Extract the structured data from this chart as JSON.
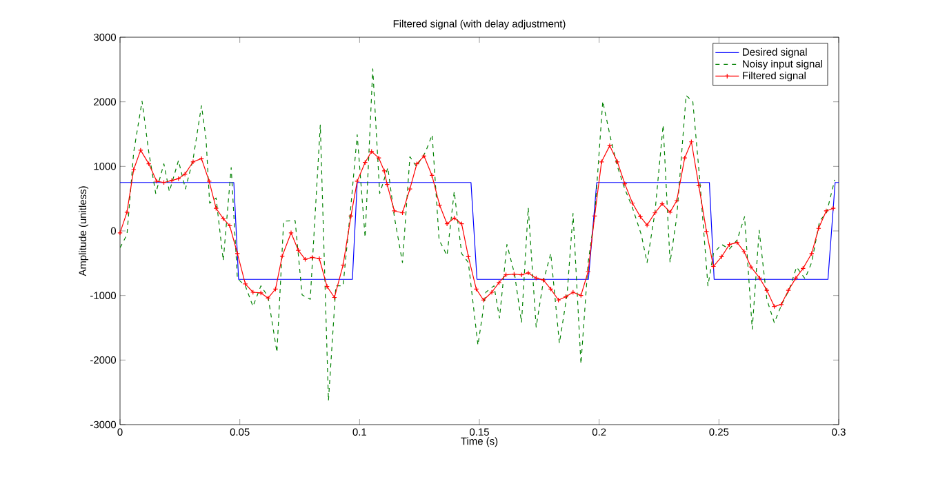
{
  "chart_data": {
    "type": "line",
    "title": "Filtered signal (with delay adjustment)",
    "xlabel": "Time (s)",
    "ylabel": "Amplitude (unitless)",
    "xlim": [
      0,
      0.3
    ],
    "xticks": [
      0,
      0.05,
      0.1,
      0.15,
      0.2,
      0.25,
      0.3
    ],
    "ylim": [
      -3000,
      3000
    ],
    "yticks": [
      -3000,
      -2000,
      -1000,
      0,
      1000,
      2000,
      3000
    ],
    "grid": false,
    "legend": "top right",
    "series": [
      {
        "name": "Desired signal",
        "color": "#0000ff",
        "line_style": "solid",
        "marker": "none",
        "x": [
          0,
          0.0475,
          0.0495,
          0.097,
          0.099,
          0.1465,
          0.149,
          0.1955,
          0.199,
          0.246,
          0.248,
          0.2955,
          0.2985,
          0.3
        ],
        "values": [
          750,
          750,
          -750,
          -750,
          750,
          750,
          -750,
          -750,
          750,
          750,
          -750,
          -750,
          750,
          750
        ]
      },
      {
        "name": "Noisy input signal",
        "color": "#008000",
        "line_style": "dashed",
        "marker": "none",
        "x": [
          0,
          0.0029,
          0.0057,
          0.0092,
          0.012,
          0.0149,
          0.0183,
          0.0206,
          0.0244,
          0.0273,
          0.0305,
          0.034,
          0.0359,
          0.0374,
          0.0401,
          0.0431,
          0.0464,
          0.049,
          0.0523,
          0.0555,
          0.0588,
          0.0618,
          0.0655,
          0.0683,
          0.0731,
          0.076,
          0.0794,
          0.0836,
          0.087,
          0.0901,
          0.0931,
          0.0964,
          0.099,
          0.1023,
          0.1055,
          0.1084,
          0.1118,
          0.1145,
          0.1179,
          0.121,
          0.1237,
          0.1275,
          0.1303,
          0.1332,
          0.1365,
          0.1395,
          0.1426,
          0.1454,
          0.1494,
          0.1527,
          0.1561,
          0.1584,
          0.1615,
          0.1647,
          0.1676,
          0.1704,
          0.1737,
          0.1767,
          0.1798,
          0.1834,
          0.1866,
          0.1891,
          0.1924,
          0.1954,
          0.1981,
          0.2015,
          0.2048,
          0.2076,
          0.2107,
          0.2139,
          0.2176,
          0.22,
          0.2233,
          0.2267,
          0.2296,
          0.2324,
          0.2363,
          0.2391,
          0.242,
          0.2454,
          0.2477,
          0.2511,
          0.2544,
          0.2576,
          0.2607,
          0.2639,
          0.2668,
          0.27,
          0.2731,
          0.2763,
          0.2792,
          0.2824,
          0.2859,
          0.2887,
          0.292,
          0.295,
          0.2983
        ],
        "values": [
          -260,
          -60,
          1220,
          2010,
          1220,
          580,
          1040,
          610,
          1090,
          650,
          1110,
          1940,
          1430,
          430,
          510,
          -460,
          980,
          -740,
          -850,
          -1170,
          -850,
          -1020,
          -1880,
          150,
          160,
          -990,
          -1060,
          1640,
          -2630,
          -850,
          -850,
          400,
          1490,
          -100,
          2510,
          580,
          980,
          220,
          -490,
          1150,
          1000,
          1220,
          1490,
          -140,
          -380,
          610,
          -350,
          -490,
          -1770,
          -950,
          -850,
          -1350,
          -210,
          -670,
          -1420,
          360,
          -1490,
          -780,
          -350,
          -1740,
          -990,
          270,
          -2060,
          -490,
          220,
          2010,
          1430,
          1000,
          650,
          360,
          -60,
          -490,
          290,
          1640,
          -490,
          220,
          2100,
          2000,
          790,
          -850,
          -350,
          -210,
          -280,
          -140,
          220,
          -1520,
          10,
          -1060,
          -1420,
          -1130,
          -920,
          -560,
          -740,
          -490,
          150,
          290,
          790
        ]
      },
      {
        "name": "Filtered signal",
        "color": "#ff0000",
        "line_style": "solid",
        "marker": "cross",
        "x": [
          0,
          0.0029,
          0.0057,
          0.0086,
          0.012,
          0.0153,
          0.0183,
          0.0216,
          0.0244,
          0.0271,
          0.0305,
          0.034,
          0.0372,
          0.0401,
          0.0431,
          0.0458,
          0.049,
          0.0523,
          0.0555,
          0.0588,
          0.0618,
          0.0649,
          0.0677,
          0.0714,
          0.0744,
          0.0773,
          0.0802,
          0.0832,
          0.0864,
          0.0895,
          0.0931,
          0.0964,
          0.099,
          0.1023,
          0.105,
          0.108,
          0.1103,
          0.1115,
          0.1145,
          0.1179,
          0.121,
          0.1239,
          0.1269,
          0.1302,
          0.1334,
          0.1365,
          0.1395,
          0.1426,
          0.1454,
          0.1487,
          0.1517,
          0.1552,
          0.1582,
          0.1611,
          0.1645,
          0.1676,
          0.1704,
          0.1737,
          0.1767,
          0.1798,
          0.183,
          0.1861,
          0.1891,
          0.1924,
          0.1954,
          0.1981,
          0.201,
          0.2044,
          0.2076,
          0.2107,
          0.2139,
          0.2172,
          0.22,
          0.2233,
          0.2263,
          0.2296,
          0.2324,
          0.2357,
          0.2385,
          0.2416,
          0.2448,
          0.2477,
          0.2511,
          0.2544,
          0.2576,
          0.2605,
          0.2634,
          0.267,
          0.27,
          0.2731,
          0.276,
          0.279,
          0.2821,
          0.2851,
          0.2887,
          0.2916,
          0.2948,
          0.2977
        ],
        "values": [
          -30,
          290,
          950,
          1250,
          1040,
          770,
          750,
          780,
          810,
          880,
          1070,
          1120,
          770,
          350,
          190,
          80,
          -350,
          -820,
          -950,
          -960,
          -1040,
          -900,
          -390,
          -30,
          -300,
          -440,
          -410,
          -430,
          -860,
          -1030,
          -530,
          230,
          770,
          1060,
          1230,
          1130,
          930,
          720,
          310,
          280,
          650,
          1040,
          1160,
          860,
          400,
          110,
          200,
          110,
          -400,
          -900,
          -1070,
          -950,
          -800,
          -680,
          -670,
          -680,
          -650,
          -730,
          -760,
          -900,
          -1070,
          -1020,
          -950,
          -1000,
          -630,
          230,
          1070,
          1320,
          1070,
          730,
          430,
          220,
          90,
          280,
          420,
          290,
          470,
          1130,
          1380,
          700,
          -10,
          -550,
          -400,
          -210,
          -180,
          -320,
          -560,
          -730,
          -920,
          -1170,
          -1140,
          -920,
          -730,
          -580,
          -350,
          40,
          310,
          350
        ]
      }
    ]
  }
}
